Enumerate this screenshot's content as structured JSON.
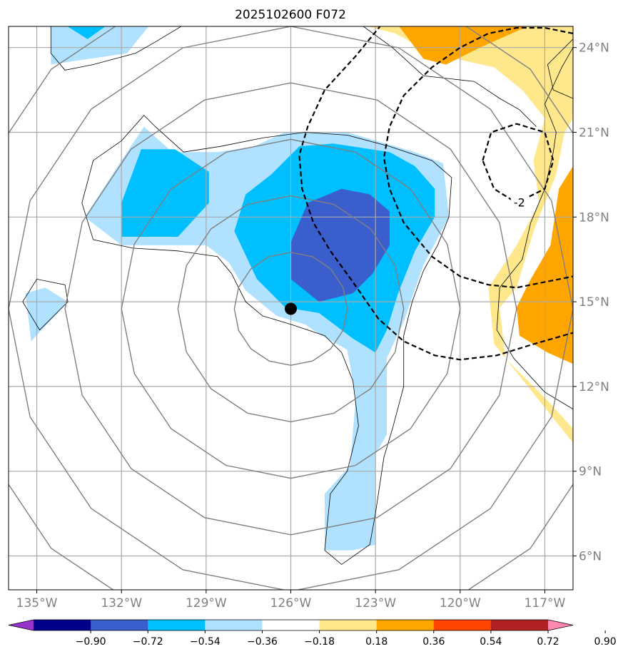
{
  "chart_data": {
    "type": "contour-map",
    "title": "2025102600 F072",
    "x_axis": {
      "name": "longitude",
      "ticks": [
        -135,
        -132,
        -129,
        -126,
        -123,
        -120,
        -117
      ],
      "tick_labels": [
        "135°W",
        "132°W",
        "129°W",
        "126°W",
        "123°W",
        "120°W",
        "117°W"
      ],
      "range": [
        -136.0,
        -116.0
      ]
    },
    "y_axis": {
      "name": "latitude",
      "ticks": [
        6,
        9,
        12,
        15,
        18,
        21,
        24
      ],
      "tick_labels": [
        "6°N",
        "9°N",
        "12°N",
        "15°N",
        "18°N",
        "21°N",
        "24°N"
      ],
      "range": [
        4.8,
        24.75
      ]
    },
    "storm_center": {
      "lon": -126.0,
      "lat": 14.75
    },
    "range_rings_deg": [
      2,
      4,
      6,
      8,
      10,
      12
    ],
    "colorbar": {
      "levels": [
        -0.9,
        -0.72,
        -0.54,
        -0.36,
        -0.18,
        0.18,
        0.36,
        0.54,
        0.72,
        0.9
      ],
      "labels": [
        "−0.90",
        "−0.72",
        "−0.54",
        "−0.36",
        "−0.18",
        "0.18",
        "0.36",
        "0.54",
        "0.72",
        "0.90"
      ],
      "colors": [
        "#9932cc",
        "#00008b",
        "#3a5fcd",
        "#00bfff",
        "#b0e2ff",
        "#ffffff",
        "#ffe88c",
        "#ffa500",
        "#ff4500",
        "#b22222",
        "#ff88b0"
      ],
      "extend": "both"
    },
    "filled_regions": [
      {
        "level": "-0.36 to -0.18",
        "color": "#b0e2ff",
        "rings": [
          [
            [
              -126.2,
              21.0
            ],
            [
              -124.0,
              21.0
            ],
            [
              -121.6,
              20.3
            ],
            [
              -120.6,
              19.9
            ],
            [
              -120.4,
              18.0
            ],
            [
              -121.3,
              16.3
            ],
            [
              -122.0,
              14.3
            ],
            [
              -122.6,
              13.0
            ],
            [
              -122.6,
              10.3
            ],
            [
              -123.0,
              9.6
            ],
            [
              -123.0,
              6.4
            ],
            [
              -123.8,
              6.2
            ],
            [
              -124.8,
              6.2
            ],
            [
              -124.8,
              8.2
            ],
            [
              -123.9,
              9.2
            ],
            [
              -123.7,
              11.6
            ],
            [
              -124.0,
              13.3
            ],
            [
              -124.9,
              13.8
            ],
            [
              -125.5,
              14.2
            ],
            [
              -126.5,
              14.5
            ],
            [
              -127.6,
              15.4
            ],
            [
              -128.2,
              16.4
            ],
            [
              -129.0,
              17.0
            ],
            [
              -132.0,
              17.0
            ],
            [
              -133.3,
              18.0
            ],
            [
              -132.0,
              20.0
            ],
            [
              -131.2,
              21.2
            ],
            [
              -130.2,
              20.3
            ],
            [
              -128.6,
              20.3
            ],
            [
              -127.3,
              20.5
            ]
          ],
          [
            [
              -134.5,
              24.8
            ],
            [
              -131.0,
              24.8
            ],
            [
              -131.8,
              23.8
            ],
            [
              -134.5,
              23.4
            ]
          ],
          [
            [
              -135.4,
              15.3
            ],
            [
              -134.7,
              15.5
            ],
            [
              -133.9,
              15.0
            ],
            [
              -135.2,
              13.6
            ]
          ]
        ]
      },
      {
        "level": "-0.54 to -0.36",
        "color": "#00bfff",
        "rings": [
          [
            [
              -125.7,
              20.5
            ],
            [
              -124.5,
              20.6
            ],
            [
              -122.5,
              20.3
            ],
            [
              -121.6,
              19.8
            ],
            [
              -120.9,
              19.0
            ],
            [
              -120.9,
              18.0
            ],
            [
              -121.6,
              16.8
            ],
            [
              -122.2,
              15.3
            ],
            [
              -122.6,
              14.0
            ],
            [
              -123.0,
              13.2
            ],
            [
              -123.8,
              13.7
            ],
            [
              -125.0,
              14.6
            ],
            [
              -126.2,
              14.8
            ],
            [
              -127.2,
              15.8
            ],
            [
              -128.0,
              17.5
            ],
            [
              -127.6,
              18.8
            ],
            [
              -126.7,
              19.5
            ]
          ],
          [
            [
              -132.0,
              18.5
            ],
            [
              -132.0,
              17.3
            ],
            [
              -130.0,
              17.3
            ],
            [
              -128.9,
              18.5
            ],
            [
              -128.9,
              19.6
            ],
            [
              -130.1,
              20.4
            ],
            [
              -131.3,
              20.4
            ]
          ],
          [
            [
              -134.0,
              24.8
            ],
            [
              -132.5,
              24.8
            ],
            [
              -133.2,
              24.3
            ]
          ]
        ]
      },
      {
        "level": "-0.72 to -0.54",
        "color": "#3a5fcd",
        "rings": [
          [
            [
              -124.2,
              19.0
            ],
            [
              -125.4,
              18.5
            ],
            [
              -126.0,
              17.1
            ],
            [
              -126.0,
              15.8
            ],
            [
              -125.0,
              15.0
            ],
            [
              -123.8,
              15.3
            ],
            [
              -123.1,
              16.0
            ],
            [
              -122.5,
              17.0
            ],
            [
              -122.5,
              18.2
            ],
            [
              -123.2,
              18.8
            ]
          ]
        ]
      },
      {
        "level": "0.18 to 0.36",
        "color": "#ffe88c",
        "rings": [
          [
            [
              -123.5,
              24.8
            ],
            [
              -116.0,
              24.8
            ],
            [
              -116.0,
              21.5
            ],
            [
              -116.3,
              21.0
            ],
            [
              -116.6,
              19.5
            ],
            [
              -117.4,
              17.5
            ],
            [
              -118.0,
              15.5
            ],
            [
              -118.6,
              14.8
            ],
            [
              -118.4,
              13.0
            ],
            [
              -116.9,
              11.5
            ],
            [
              -116.0,
              10.5
            ],
            [
              -116.0,
              10.0
            ],
            [
              -116.8,
              11.0
            ],
            [
              -118.0,
              12.5
            ],
            [
              -118.8,
              13.5
            ],
            [
              -119.0,
              15.5
            ],
            [
              -118.0,
              17.0
            ],
            [
              -117.2,
              18.5
            ],
            [
              -117.4,
              20.0
            ],
            [
              -117.0,
              21.5
            ],
            [
              -117.8,
              22.5
            ],
            [
              -118.8,
              23.3
            ],
            [
              -119.7,
              23.5
            ],
            [
              -121.0,
              23.8
            ],
            [
              -122.3,
              24.5
            ]
          ]
        ]
      },
      {
        "level": "0.36 to 0.54",
        "color": "#ffa500",
        "rings": [
          [
            [
              -122.2,
              24.8
            ],
            [
              -117.5,
              24.8
            ],
            [
              -119.3,
              24.0
            ],
            [
              -120.5,
              23.4
            ],
            [
              -121.3,
              23.6
            ]
          ],
          [
            [
              -116.0,
              19.8
            ],
            [
              -116.5,
              19.0
            ],
            [
              -116.8,
              17.0
            ],
            [
              -117.5,
              15.8
            ],
            [
              -118.0,
              14.8
            ],
            [
              -117.9,
              13.8
            ],
            [
              -116.9,
              13.2
            ],
            [
              -116.0,
              12.8
            ]
          ]
        ]
      }
    ],
    "dashed_contours": [
      {
        "label": "-2",
        "label_at": {
          "lon": -117.9,
          "lat": 18.5
        },
        "lines": [
          [
            [
              -122.8,
              24.8
            ],
            [
              -123.7,
              23.7
            ],
            [
              -124.8,
              22.5
            ],
            [
              -125.4,
              21.2
            ],
            [
              -125.7,
              20.2
            ],
            [
              -125.6,
              19.0
            ],
            [
              -125.2,
              17.8
            ],
            [
              -124.6,
              16.8
            ],
            [
              -123.8,
              15.7
            ],
            [
              -122.9,
              14.4
            ],
            [
              -122.0,
              13.6
            ],
            [
              -120.9,
              13.1
            ],
            [
              -120.0,
              12.95
            ],
            [
              -118.7,
              13.1
            ],
            [
              -117.4,
              13.5
            ],
            [
              -116.0,
              13.9
            ]
          ],
          [
            [
              -116.0,
              24.5
            ],
            [
              -117.0,
              24.7
            ],
            [
              -118.0,
              24.7
            ],
            [
              -119.0,
              24.5
            ],
            [
              -120.0,
              24.0
            ],
            [
              -121.0,
              23.3
            ],
            [
              -122.0,
              22.3
            ],
            [
              -122.5,
              21.2
            ],
            [
              -122.7,
              20.1
            ],
            [
              -122.5,
              19.0
            ],
            [
              -122.0,
              17.8
            ],
            [
              -121.0,
              16.6
            ],
            [
              -120.0,
              15.9
            ],
            [
              -119.0,
              15.6
            ],
            [
              -118.0,
              15.5
            ],
            [
              -117.0,
              15.7
            ],
            [
              -116.0,
              15.9
            ]
          ],
          [
            [
              -119.2,
              20.0
            ],
            [
              -118.9,
              21.0
            ],
            [
              -118.0,
              21.3
            ],
            [
              -117.0,
              21.0
            ],
            [
              -116.7,
              20.0
            ],
            [
              -117.0,
              19.0
            ],
            [
              -118.0,
              18.5
            ],
            [
              -118.8,
              19.0
            ],
            [
              -119.2,
              20.0
            ]
          ]
        ]
      }
    ],
    "coastlines": [
      [
        [
          -134.5,
          24.8
        ],
        [
          -134.5,
          23.8
        ],
        [
          -134.0,
          23.2
        ],
        [
          -133.0,
          23.4
        ],
        [
          -131.5,
          23.8
        ],
        [
          -130.8,
          24.2
        ],
        [
          -129.8,
          24.8
        ]
      ],
      [
        [
          -132.0,
          20.7
        ],
        [
          -131.2,
          21.6
        ],
        [
          -130.8,
          21.2
        ],
        [
          -129.8,
          20.3
        ],
        [
          -128.5,
          20.5
        ],
        [
          -127.0,
          20.8
        ],
        [
          -125.5,
          21.0
        ],
        [
          -124.0,
          20.9
        ],
        [
          -122.5,
          20.5
        ],
        [
          -121.0,
          20.0
        ],
        [
          -120.3,
          19.4
        ],
        [
          -120.4,
          18.0
        ],
        [
          -120.8,
          17.0
        ],
        [
          -121.3,
          16.1
        ],
        [
          -121.7,
          15.0
        ],
        [
          -122.0,
          13.8
        ],
        [
          -122.0,
          12.0
        ],
        [
          -122.4,
          10.5
        ],
        [
          -122.7,
          9.5
        ],
        [
          -123.0,
          7.5
        ],
        [
          -123.2,
          6.4
        ],
        [
          -124.2,
          5.7
        ],
        [
          -124.8,
          6.2
        ],
        [
          -124.6,
          8.2
        ],
        [
          -124.0,
          9.0
        ],
        [
          -123.6,
          10.6
        ],
        [
          -123.8,
          12.2
        ],
        [
          -124.2,
          13.2
        ],
        [
          -124.8,
          13.8
        ],
        [
          -126.0,
          14.2
        ],
        [
          -127.0,
          14.5
        ],
        [
          -127.6,
          15.0
        ],
        [
          -128.1,
          16.0
        ],
        [
          -128.6,
          16.6
        ],
        [
          -130.0,
          16.8
        ],
        [
          -131.6,
          16.9
        ],
        [
          -133.0,
          17.2
        ],
        [
          -133.4,
          18.5
        ],
        [
          -133.0,
          20.0
        ],
        [
          -132.0,
          20.7
        ]
      ],
      [
        [
          -135.5,
          15.0
        ],
        [
          -135.0,
          15.8
        ],
        [
          -134.0,
          15.6
        ],
        [
          -133.9,
          15.0
        ],
        [
          -134.9,
          14.0
        ],
        [
          -135.5,
          15.0
        ]
      ],
      [
        [
          -116.0,
          24.0
        ],
        [
          -116.4,
          23.3
        ],
        [
          -117.0,
          22.0
        ],
        [
          -116.6,
          21.0
        ],
        [
          -116.7,
          20.3
        ],
        [
          -117.0,
          19.0
        ],
        [
          -117.5,
          17.8
        ],
        [
          -117.8,
          16.5
        ],
        [
          -118.6,
          15.5
        ],
        [
          -118.7,
          14.0
        ],
        [
          -118.1,
          13.0
        ],
        [
          -117.0,
          11.8
        ],
        [
          -116.0,
          11.2
        ]
      ],
      [
        [
          -123.5,
          24.8
        ],
        [
          -122.4,
          24.0
        ],
        [
          -121.3,
          23.0
        ],
        [
          -119.5,
          22.8
        ],
        [
          -118.6,
          22.2
        ],
        [
          -117.9,
          21.8
        ],
        [
          -117.3,
          21.2
        ]
      ],
      [
        [
          -116.0,
          24.3
        ],
        [
          -116.9,
          23.4
        ],
        [
          -116.7,
          22.5
        ],
        [
          -116.0,
          22.2
        ]
      ]
    ]
  }
}
